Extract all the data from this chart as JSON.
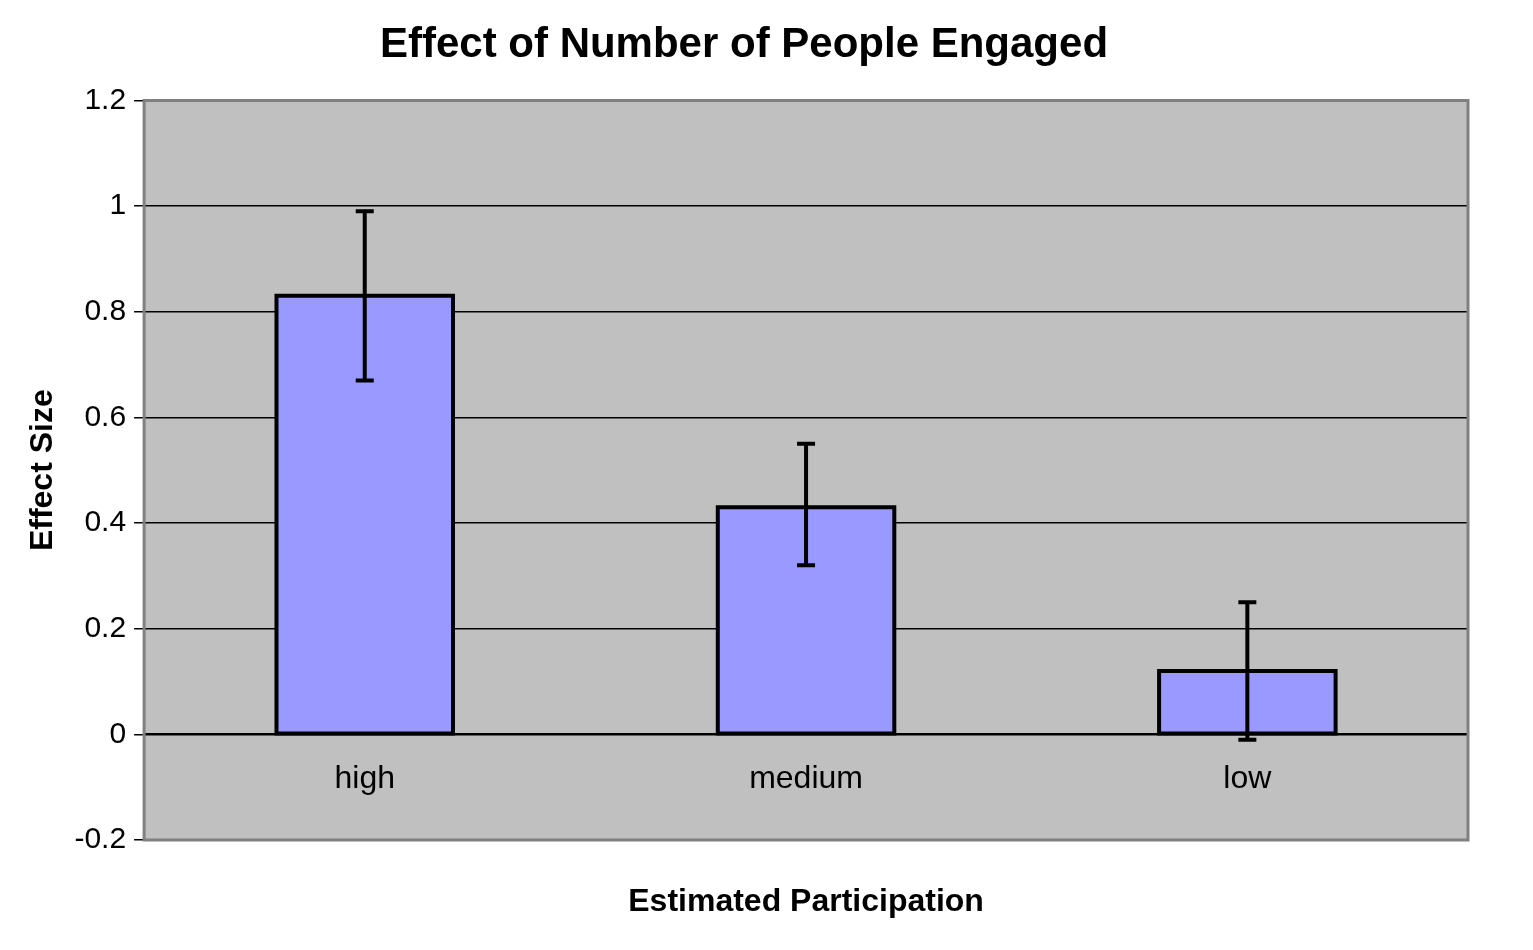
{
  "chart_data": {
    "type": "bar",
    "title": "Effect of Number of People Engaged",
    "xlabel": "Estimated Participation",
    "ylabel": "Effect Size",
    "categories": [
      "high",
      "medium",
      "low"
    ],
    "values": [
      0.83,
      0.43,
      0.12
    ],
    "errors": [
      [
        0.67,
        0.99
      ],
      [
        0.32,
        0.55
      ],
      [
        -0.01,
        0.25
      ]
    ],
    "color": "#9999ff",
    "ylim": [
      -0.2,
      1.2
    ],
    "yticks": [
      -0.2,
      0,
      0.2,
      0.4,
      0.6,
      0.8,
      1,
      1.2
    ],
    "grid": "y"
  }
}
